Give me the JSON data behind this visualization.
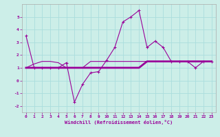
{
  "xlabel": "Windchill (Refroidissement éolien,°C)",
  "bg_color": "#cceee8",
  "grid_color": "#aadddd",
  "line_color": "#990099",
  "x_data": [
    0,
    1,
    2,
    3,
    4,
    5,
    6,
    7,
    8,
    9,
    10,
    11,
    12,
    13,
    14,
    15,
    16,
    17,
    18,
    19,
    20,
    21,
    22,
    23
  ],
  "y_main": [
    3.5,
    1.0,
    1.0,
    1.0,
    1.0,
    1.4,
    -1.7,
    -0.3,
    0.6,
    0.7,
    1.6,
    2.6,
    4.6,
    5.0,
    5.5,
    2.6,
    3.1,
    2.6,
    1.5,
    1.5,
    1.5,
    1.0,
    1.5,
    1.5
  ],
  "y_flat1": [
    1.0,
    1.0,
    1.0,
    1.0,
    1.0,
    1.0,
    1.0,
    1.0,
    1.0,
    1.0,
    1.0,
    1.0,
    1.0,
    1.0,
    1.0,
    1.5,
    1.5,
    1.5,
    1.5,
    1.5,
    1.5,
    1.5,
    1.5,
    1.5
  ],
  "y_flat2": [
    1.0,
    1.3,
    1.5,
    1.5,
    1.4,
    1.0,
    1.0,
    1.0,
    1.5,
    1.5,
    1.5,
    1.5,
    1.5,
    1.5,
    1.5,
    1.5,
    1.5,
    1.5,
    1.5,
    1.5,
    1.5,
    1.5,
    1.5,
    1.5
  ],
  "ylim": [
    -2.5,
    6.0
  ],
  "xlim": [
    -0.5,
    23.5
  ],
  "yticks": [
    -2,
    -1,
    0,
    1,
    2,
    3,
    4,
    5
  ],
  "xticks": [
    0,
    1,
    2,
    3,
    4,
    5,
    6,
    7,
    8,
    9,
    10,
    11,
    12,
    13,
    14,
    15,
    16,
    17,
    18,
    19,
    20,
    21,
    22,
    23
  ]
}
